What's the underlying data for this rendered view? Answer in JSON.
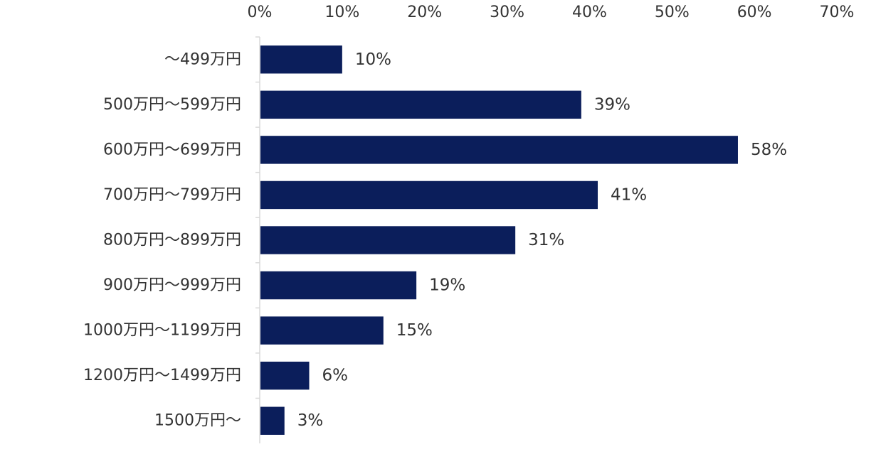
{
  "chart_data": {
    "type": "bar",
    "orientation": "horizontal",
    "categories": [
      "～499万円",
      "500万円～599万円",
      "600万円～699万円",
      "700万円～799万円",
      "800万円～899万円",
      "900万円～999万円",
      "1000万円～1199万円",
      "1200万円～1499万円",
      "1500万円～"
    ],
    "values": [
      10,
      39,
      58,
      41,
      31,
      19,
      15,
      6,
      3
    ],
    "data_labels": [
      "10%",
      "39%",
      "58%",
      "41%",
      "31%",
      "19%",
      "15%",
      "6%",
      "3%"
    ],
    "x_ticks": [
      "0%",
      "10%",
      "20%",
      "30%",
      "40%",
      "50%",
      "60%",
      "70%"
    ],
    "xlim": [
      0,
      70
    ],
    "x_axis_position": "top",
    "grid": false,
    "legend": "none",
    "bar_color": "#0b1e5b",
    "title": "",
    "xlabel": "",
    "ylabel": ""
  }
}
